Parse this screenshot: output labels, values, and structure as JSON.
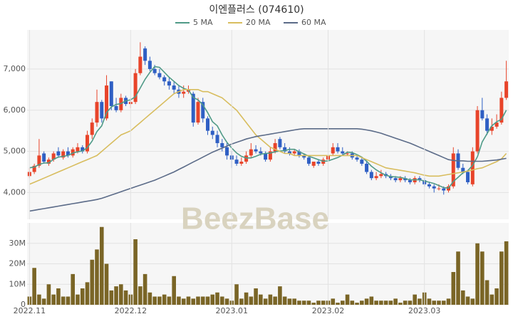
{
  "chart_data": [
    {
      "type": "candlestick",
      "title": "이엔플러스 (074610)",
      "watermark": "BeezBase",
      "up_color": "#e8442a",
      "down_color": "#2f5fc4",
      "grid": true,
      "ylim": [
        3350,
        7950
      ],
      "yticks": [
        {
          "value": 4000,
          "label": "4,000"
        },
        {
          "value": 5000,
          "label": "5,000"
        },
        {
          "value": 6000,
          "label": "6,000"
        },
        {
          "value": 7000,
          "label": "7,000"
        }
      ],
      "open": [
        4400,
        4500,
        4650,
        4950,
        4700,
        4800,
        5000,
        4850,
        5000,
        4900,
        5000,
        5100,
        5000,
        5400,
        5700,
        6200,
        5800,
        6700,
        6100,
        6000,
        6300,
        6150,
        6200,
        6900,
        7500,
        7200,
        7000,
        6900,
        6800,
        6700,
        6600,
        6500,
        6400,
        6450,
        6400,
        5700,
        6200,
        5800,
        5500,
        5400,
        5200,
        5100,
        4900,
        4800,
        4700,
        4750,
        4900,
        5050,
        5000,
        4950,
        4800,
        5000,
        5300,
        5100,
        5000,
        4950,
        5000,
        4900,
        4850,
        4650,
        4750,
        4700,
        4800,
        4950,
        5100,
        5000,
        4950,
        4950,
        4850,
        4800,
        4700,
        4500,
        4350,
        4400,
        4450,
        4400,
        4350,
        4300,
        4350,
        4300,
        4250,
        4350,
        4300,
        4200,
        4150,
        4100,
        4100,
        4050,
        4150,
        4950,
        4600,
        4500,
        4200,
        5000,
        6000,
        5800,
        5500,
        5600,
        5700,
        6300
      ],
      "high": [
        4600,
        4700,
        5300,
        5000,
        4850,
        5000,
        5100,
        5050,
        5100,
        5100,
        5200,
        5150,
        5500,
        5800,
        6500,
        6250,
        6850,
        6700,
        6300,
        6400,
        6350,
        6300,
        7000,
        7650,
        7550,
        7300,
        7100,
        7000,
        6850,
        6800,
        6700,
        6600,
        6600,
        6600,
        6450,
        6300,
        6300,
        5850,
        5600,
        5500,
        5300,
        5200,
        5000,
        4900,
        4850,
        5000,
        5200,
        5150,
        5100,
        5000,
        5100,
        5300,
        5350,
        5200,
        5100,
        5050,
        5050,
        4950,
        4900,
        4750,
        4800,
        4850,
        4950,
        5200,
        5200,
        5100,
        5000,
        5000,
        4900,
        4850,
        4750,
        4550,
        4500,
        4550,
        4500,
        4450,
        4400,
        4400,
        4400,
        4350,
        4400,
        4400,
        4350,
        4250,
        4200,
        4200,
        4150,
        4200,
        5100,
        5050,
        4700,
        4550,
        5100,
        6100,
        6300,
        5900,
        5800,
        5900,
        6450,
        7200
      ],
      "low": [
        4350,
        4450,
        4600,
        4700,
        4650,
        4750,
        4850,
        4800,
        4850,
        4850,
        4950,
        4950,
        4950,
        5300,
        5600,
        5700,
        5750,
        6000,
        5950,
        5950,
        6100,
        6050,
        6150,
        6850,
        7100,
        6950,
        6850,
        6750,
        6600,
        6500,
        6400,
        6300,
        6300,
        6400,
        5600,
        5650,
        5700,
        5400,
        5300,
        5100,
        5000,
        4800,
        4600,
        4650,
        4650,
        4700,
        4850,
        4950,
        4900,
        4750,
        4750,
        4950,
        5050,
        4950,
        4900,
        4900,
        4850,
        4800,
        4650,
        4600,
        4650,
        4650,
        4750,
        4900,
        4950,
        4900,
        4900,
        4800,
        4750,
        4650,
        4450,
        4300,
        4300,
        4350,
        4350,
        4300,
        4250,
        4250,
        4250,
        4200,
        4200,
        4250,
        4150,
        4100,
        4000,
        4050,
        3950,
        4000,
        4100,
        4550,
        4450,
        4200,
        4150,
        4950,
        5750,
        5400,
        5400,
        5550,
        5650,
        6250
      ],
      "close": [
        4500,
        4650,
        4900,
        4750,
        4800,
        4950,
        4900,
        5000,
        4900,
        5050,
        5100,
        5000,
        5400,
        5700,
        6200,
        5800,
        6600,
        6100,
        6000,
        6300,
        6150,
        6200,
        6900,
        7300,
        7200,
        7000,
        6900,
        6800,
        6700,
        6600,
        6500,
        6400,
        6450,
        6500,
        5700,
        6200,
        5800,
        5500,
        5400,
        5200,
        5100,
        4900,
        4800,
        4700,
        4750,
        4900,
        5050,
        5000,
        4950,
        4800,
        5000,
        5200,
        5100,
        5000,
        4950,
        5000,
        4900,
        4850,
        4700,
        4750,
        4700,
        4800,
        4900,
        5100,
        5000,
        4950,
        4950,
        4850,
        4800,
        4700,
        4500,
        4350,
        4400,
        4450,
        4400,
        4350,
        4300,
        4350,
        4300,
        4250,
        4350,
        4300,
        4200,
        4150,
        4100,
        4100,
        4050,
        4150,
        4950,
        4600,
        4500,
        4250,
        5000,
        6000,
        5800,
        5500,
        5600,
        5700,
        6300,
        6700
      ],
      "series": [
        {
          "name": "5 MA",
          "color": "#4f9a87",
          "values": [
            4600,
            4620,
            4680,
            4720,
            4720,
            4810,
            4860,
            4880,
            4900,
            4960,
            4990,
            5010,
            5090,
            5250,
            5480,
            5620,
            5940,
            6080,
            6140,
            6160,
            6230,
            6250,
            6330,
            6540,
            6750,
            6920,
            7060,
            7040,
            6920,
            6800,
            6700,
            6600,
            6530,
            6490,
            6310,
            6250,
            6130,
            5940,
            5720,
            5620,
            5400,
            5220,
            5080,
            4960,
            4880,
            4840,
            4840,
            4880,
            4930,
            4950,
            4960,
            4990,
            5010,
            5020,
            5050,
            5050,
            4990,
            4940,
            4880,
            4840,
            4800,
            4760,
            4770,
            4810,
            4850,
            4910,
            4980,
            4970,
            4920,
            4860,
            4760,
            4640,
            4550,
            4480,
            4420,
            4390,
            4380,
            4370,
            4340,
            4310,
            4310,
            4310,
            4280,
            4250,
            4220,
            4170,
            4120,
            4110,
            4270,
            4370,
            4480,
            4530,
            4660,
            4870,
            5230,
            5430,
            5620,
            5720,
            5780,
            6000
          ]
        },
        {
          "name": "20 MA",
          "color": "#d8bd5e",
          "values": [
            4200,
            4250,
            4300,
            4350,
            4400,
            4450,
            4500,
            4550,
            4600,
            4650,
            4700,
            4750,
            4800,
            4850,
            4900,
            5000,
            5100,
            5200,
            5300,
            5400,
            5450,
            5500,
            5600,
            5700,
            5800,
            5900,
            6000,
            6100,
            6200,
            6300,
            6400,
            6450,
            6500,
            6500,
            6500,
            6500,
            6450,
            6450,
            6400,
            6350,
            6300,
            6200,
            6100,
            6000,
            5850,
            5700,
            5550,
            5400,
            5300,
            5200,
            5100,
            5050,
            5000,
            4950,
            4950,
            4900,
            4900,
            4900,
            4900,
            4900,
            4900,
            4900,
            4900,
            4900,
            4900,
            4900,
            4900,
            4900,
            4900,
            4850,
            4800,
            4750,
            4700,
            4650,
            4600,
            4580,
            4560,
            4540,
            4520,
            4500,
            4480,
            4450,
            4420,
            4400,
            4400,
            4400,
            4420,
            4440,
            4460,
            4480,
            4500,
            4520,
            4550,
            4580,
            4600,
            4650,
            4700,
            4750,
            4820,
            4950
          ]
        },
        {
          "name": "60 MA",
          "color": "#5b6b88",
          "values": [
            3550,
            3570,
            3590,
            3610,
            3630,
            3650,
            3670,
            3690,
            3710,
            3730,
            3750,
            3770,
            3790,
            3810,
            3830,
            3860,
            3900,
            3940,
            3980,
            4020,
            4060,
            4100,
            4140,
            4180,
            4220,
            4260,
            4300,
            4350,
            4400,
            4450,
            4500,
            4560,
            4620,
            4680,
            4740,
            4800,
            4860,
            4920,
            4980,
            5030,
            5080,
            5130,
            5180,
            5220,
            5260,
            5300,
            5330,
            5360,
            5380,
            5400,
            5420,
            5440,
            5460,
            5480,
            5500,
            5520,
            5540,
            5550,
            5550,
            5550,
            5550,
            5550,
            5550,
            5550,
            5550,
            5550,
            5550,
            5550,
            5550,
            5540,
            5520,
            5500,
            5470,
            5440,
            5400,
            5360,
            5320,
            5280,
            5240,
            5200,
            5150,
            5100,
            5050,
            5000,
            4950,
            4900,
            4850,
            4800,
            4780,
            4770,
            4770,
            4760,
            4760,
            4760,
            4760,
            4770,
            4780,
            4790,
            4810,
            4830
          ]
        }
      ]
    },
    {
      "type": "bar",
      "color": "#7a6526",
      "grid": true,
      "ylim": [
        0,
        40
      ],
      "yticks": [
        0,
        {
          "value": 10,
          "label": "10M"
        },
        {
          "value": 20,
          "label": "20M"
        },
        {
          "value": 30,
          "label": "30M"
        }
      ],
      "categories": [
        "2022.11",
        null,
        null,
        null,
        null,
        null,
        null,
        null,
        null,
        null,
        null,
        null,
        null,
        null,
        null,
        null,
        null,
        null,
        null,
        null,
        null,
        "2022.12",
        null,
        null,
        null,
        null,
        null,
        null,
        null,
        null,
        null,
        null,
        null,
        null,
        null,
        null,
        null,
        null,
        null,
        null,
        null,
        null,
        "2023.01",
        null,
        null,
        null,
        null,
        null,
        null,
        null,
        null,
        null,
        null,
        null,
        null,
        null,
        null,
        null,
        null,
        null,
        null,
        null,
        "2023.02",
        null,
        null,
        null,
        null,
        null,
        null,
        null,
        null,
        null,
        null,
        null,
        null,
        null,
        null,
        null,
        null,
        null,
        null,
        null,
        "2023.03",
        null,
        null,
        null,
        null,
        null,
        null,
        null,
        null,
        null,
        null,
        null,
        null,
        null,
        null,
        null,
        null,
        null
      ],
      "values": [
        4,
        18,
        5,
        3,
        10,
        5,
        8,
        4,
        4,
        15,
        5,
        8,
        11,
        22,
        27,
        38,
        20,
        7,
        9,
        10,
        7,
        5,
        32,
        9,
        15,
        6,
        4,
        4,
        5,
        4,
        14,
        4,
        3,
        4,
        3,
        4,
        4,
        4,
        5,
        6,
        4,
        3,
        2,
        10,
        3,
        6,
        4,
        8,
        5,
        3,
        5,
        4,
        9,
        4,
        3,
        3,
        2,
        2,
        2,
        1,
        2,
        2,
        2,
        3,
        1,
        2,
        5,
        2,
        1,
        2,
        3,
        4,
        2,
        2,
        2,
        2,
        3,
        1,
        2,
        2,
        5,
        3,
        6,
        3,
        2,
        2,
        2,
        3,
        16,
        26,
        7,
        4,
        3,
        30,
        26,
        12,
        5,
        8,
        26,
        31
      ]
    }
  ]
}
